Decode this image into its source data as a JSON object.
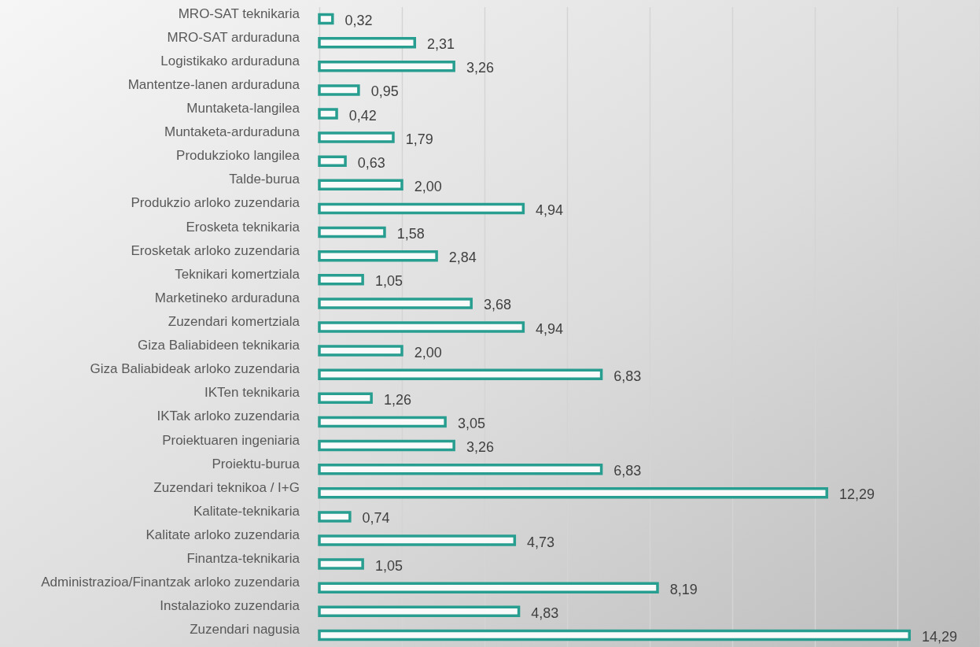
{
  "chart_data": {
    "type": "bar",
    "orientation": "horizontal",
    "categories": [
      "MRO-SAT teknikaria",
      "MRO-SAT arduraduna",
      "Logistikako arduraduna",
      "Mantentze-lanen arduraduna",
      "Muntaketa-langilea",
      "Muntaketa-arduraduna",
      "Produkzioko langilea",
      "Talde-burua",
      "Produkzio arloko zuzendaria",
      "Erosketa teknikaria",
      "Erosketak arloko zuzendaria",
      "Teknikari komertziala",
      "Marketineko arduraduna",
      "Zuzendari komertziala",
      "Giza Baliabideen teknikaria",
      "Giza Baliabideak arloko zuzendaria",
      "IKTen teknikaria",
      "IKTak arloko zuzendaria",
      "Proiektuaren ingeniaria",
      "Proiektu-burua",
      "Zuzendari teknikoa / I+G",
      "Kalitate-teknikaria",
      "Kalitate arloko zuzendaria",
      "Finantza-teknikaria",
      "Administrazioa/Finantzak arloko zuzendaria",
      "Instalazioko zuzendaria",
      "Zuzendari nagusia"
    ],
    "values": [
      0.32,
      2.31,
      3.26,
      0.95,
      0.42,
      1.79,
      0.63,
      2.0,
      4.94,
      1.58,
      2.84,
      1.05,
      3.68,
      4.94,
      2.0,
      6.83,
      1.26,
      3.05,
      3.26,
      6.83,
      12.29,
      0.74,
      4.73,
      1.05,
      8.19,
      4.83,
      14.29
    ],
    "value_labels": [
      "0,32",
      "2,31",
      "3,26",
      "0,95",
      "0,42",
      "1,79",
      "0,63",
      "2,00",
      "4,94",
      "1,58",
      "2,84",
      "1,05",
      "3,68",
      "4,94",
      "2,00",
      "6,83",
      "1,26",
      "3,05",
      "3,26",
      "6,83",
      "12,29",
      "0,74",
      "4,73",
      "1,05",
      "8,19",
      "4,83",
      "14,29"
    ],
    "color": "#289e90",
    "grid": "x",
    "tick_labels": "y"
  }
}
